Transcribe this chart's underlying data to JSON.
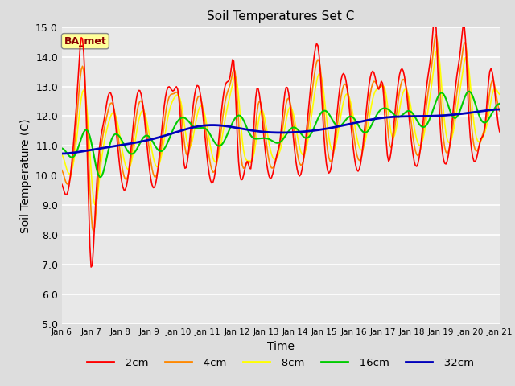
{
  "title": "Soil Temperatures Set C",
  "xlabel": "Time",
  "ylabel": "Soil Temperature (C)",
  "ylim": [
    5.0,
    15.0
  ],
  "yticks": [
    5.0,
    6.0,
    7.0,
    8.0,
    9.0,
    10.0,
    11.0,
    12.0,
    13.0,
    14.0,
    15.0
  ],
  "xtick_labels": [
    "Jan 6",
    "Jan 7",
    "Jan 8",
    "Jan 9",
    "Jan 10",
    "Jan 11",
    "Jan 12",
    "Jan 13",
    "Jan 14",
    "Jan 15",
    "Jan 16",
    "Jan 17",
    "Jan 18",
    "Jan 19",
    "Jan 20",
    "Jan 21"
  ],
  "background_color": "#dddddd",
  "plot_bg_color": "#e8e8e8",
  "grid_color": "#ffffff",
  "colors": {
    "-2cm": "#ff0000",
    "-4cm": "#ff8800",
    "-8cm": "#ffff00",
    "-16cm": "#00cc00",
    "-32cm": "#0000bb"
  },
  "legend_label": "BA_met",
  "figsize": [
    6.4,
    4.8
  ],
  "dpi": 100
}
